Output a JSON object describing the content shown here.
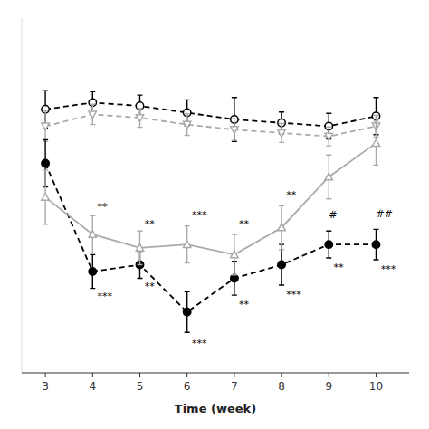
{
  "chart_data": {
    "type": "line",
    "x": [
      3,
      4,
      5,
      6,
      7,
      8,
      9,
      10
    ],
    "xlabel": "Time (week)",
    "xlim": [
      2.5,
      10.7
    ],
    "xticks": [
      3,
      4,
      5,
      6,
      7,
      8,
      9,
      10
    ],
    "ylim": [
      2.0,
      12.5
    ],
    "tick_labels": "x",
    "series": [
      {
        "color": "#000000",
        "marker": "open-circle",
        "line_style": "dashed",
        "values": [
          9.8,
          10.0,
          9.9,
          9.7,
          9.5,
          9.4,
          9.3,
          9.6
        ],
        "errors": [
          0.55,
          0.32,
          0.32,
          0.38,
          0.65,
          0.32,
          0.38,
          0.55
        ]
      },
      {
        "color": "#aaaaaa",
        "marker": "open-triangle-down",
        "line_style": "dashed",
        "values": [
          9.3,
          9.65,
          9.55,
          9.35,
          9.2,
          9.1,
          9.0,
          9.3
        ],
        "errors": [
          0.45,
          0.3,
          0.28,
          0.32,
          0.32,
          0.28,
          0.28,
          0.32
        ]
      },
      {
        "color": "#000000",
        "marker": "circle",
        "line_style": "dashed",
        "values": [
          8.2,
          5.0,
          5.2,
          3.8,
          4.8,
          5.2,
          5.8,
          5.8
        ],
        "errors": [
          0.7,
          0.5,
          0.4,
          0.6,
          0.5,
          0.6,
          0.4,
          0.45
        ]
      },
      {
        "color": "#aaaaaa",
        "marker": "open-triangle-up",
        "line_style": "solid",
        "values": [
          7.2,
          6.1,
          5.7,
          5.8,
          5.5,
          6.3,
          7.8,
          8.8
        ],
        "errors": [
          0.8,
          0.55,
          0.5,
          0.55,
          0.6,
          0.65,
          0.65,
          0.65
        ]
      }
    ],
    "annotations": [
      {
        "text": "**",
        "x": 4.1,
        "y": 6.9
      },
      {
        "text": "***",
        "x": 4.1,
        "y": 4.25
      },
      {
        "text": "**",
        "x": 5.1,
        "y": 6.4
      },
      {
        "text": "**",
        "x": 5.1,
        "y": 4.55
      },
      {
        "text": "***",
        "x": 6.1,
        "y": 6.65
      },
      {
        "text": "***",
        "x": 6.1,
        "y": 2.85
      },
      {
        "text": "**",
        "x": 7.1,
        "y": 6.4
      },
      {
        "text": "**",
        "x": 7.1,
        "y": 4.0
      },
      {
        "text": "**",
        "x": 8.1,
        "y": 7.25
      },
      {
        "text": "***",
        "x": 8.1,
        "y": 4.3
      },
      {
        "text": "#",
        "x": 9,
        "y": 6.65
      },
      {
        "text": "**",
        "x": 9.1,
        "y": 5.1
      },
      {
        "text": "##",
        "x": 10,
        "y": 6.7
      },
      {
        "text": "***",
        "x": 10.1,
        "y": 5.05
      }
    ]
  }
}
